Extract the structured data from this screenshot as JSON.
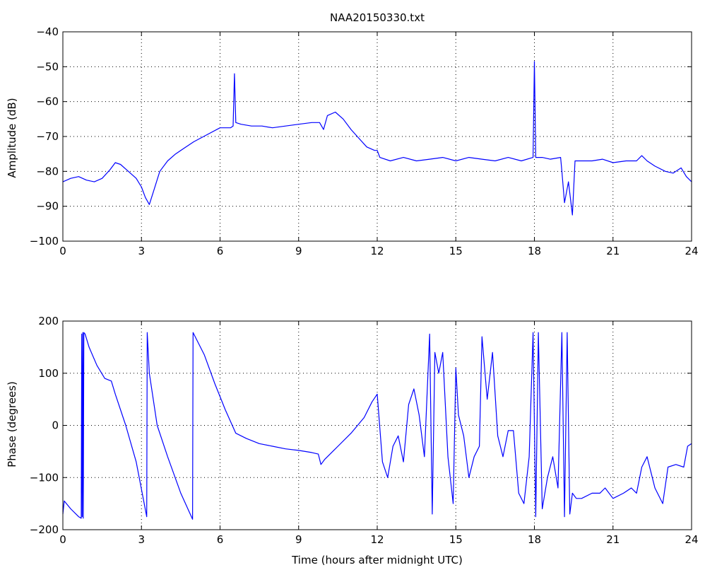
{
  "chart_data": [
    {
      "type": "line",
      "title": "NAA20150330.txt",
      "xlabel": "",
      "ylabel": "Amplitude (dB)",
      "xlim": [
        0,
        24
      ],
      "ylim": [
        -100,
        -40
      ],
      "xticks": [
        0,
        3,
        6,
        9,
        12,
        15,
        18,
        21,
        24
      ],
      "yticks": [
        -100,
        -90,
        -80,
        -70,
        -60,
        -50,
        -40
      ],
      "grid": true,
      "line_color": "#0000ff",
      "series": [
        {
          "x": [
            0,
            0.3,
            0.6,
            0.9,
            1.2,
            1.5,
            1.8,
            2.0,
            2.2,
            2.5,
            2.8,
            3.0,
            3.15,
            3.3,
            3.45,
            3.7,
            4.0,
            4.3,
            4.7,
            5.0,
            5.5,
            6.0,
            6.4,
            6.5,
            6.55,
            6.6,
            6.8,
            7.2,
            7.6,
            8.0,
            8.5,
            9.0,
            9.5,
            9.8,
            9.95,
            10.1,
            10.4,
            10.7,
            11.0,
            11.3,
            11.6,
            11.9,
            12.0,
            12.1,
            12.5,
            13.0,
            13.5,
            14.0,
            14.5,
            15.0,
            15.5,
            16.0,
            16.5,
            17.0,
            17.5,
            17.95,
            18.0,
            18.05,
            18.3,
            18.6,
            19.0,
            19.05,
            19.15,
            19.3,
            19.45,
            19.55,
            19.8,
            20.2,
            20.6,
            21.0,
            21.5,
            21.9,
            22.1,
            22.3,
            22.6,
            23.0,
            23.3,
            23.6,
            23.8,
            24.0
          ],
          "y": [
            -83,
            -82,
            -81.5,
            -82.5,
            -83,
            -82,
            -79.5,
            -77.5,
            -78,
            -80,
            -82,
            -84.5,
            -87.5,
            -89.5,
            -86,
            -80,
            -77,
            -75,
            -73,
            -71.5,
            -69.5,
            -67.5,
            -67.5,
            -67,
            -52,
            -66,
            -66.5,
            -67,
            -67,
            -67.5,
            -67,
            -66.5,
            -66,
            -66,
            -68,
            -64,
            -63,
            -65,
            -68,
            -70.5,
            -73,
            -74,
            -74,
            -76,
            -77,
            -76,
            -77,
            -76.5,
            -76,
            -77,
            -76,
            -76.5,
            -77,
            -76,
            -77,
            -76,
            -48.5,
            -76,
            -76,
            -76.5,
            -76,
            -80,
            -89,
            -83,
            -92.5,
            -77,
            -77,
            -77,
            -76.5,
            -77.5,
            -77,
            -77,
            -75.5,
            -77,
            -78.5,
            -80,
            -80.5,
            -79,
            -81.5,
            -83
          ]
        }
      ]
    },
    {
      "type": "line",
      "title": "",
      "xlabel": "Time (hours after midnight UTC)",
      "ylabel": "Phase (degrees)",
      "xlim": [
        0,
        24
      ],
      "ylim": [
        -200,
        200
      ],
      "xticks": [
        0,
        3,
        6,
        9,
        12,
        15,
        18,
        21,
        24
      ],
      "yticks": [
        -200,
        -100,
        0,
        100,
        200
      ],
      "grid": true,
      "line_color": "#0000ff",
      "series": [
        {
          "x": [
            0,
            0.05,
            0.3,
            0.6,
            0.7,
            0.72,
            0.74,
            0.76,
            0.78,
            0.8,
            0.85,
            1.0,
            1.3,
            1.6,
            1.85,
            2.0,
            2.4,
            2.8,
            3.2,
            3.22,
            3.3,
            3.6,
            4.0,
            4.5,
            4.95,
            4.97,
            5.0,
            5.4,
            5.8,
            6.0,
            6.2,
            6.6,
            7.0,
            7.5,
            8.0,
            8.5,
            9.0,
            9.5,
            9.75,
            9.85,
            10.0,
            10.5,
            11.0,
            11.5,
            11.8,
            12.0,
            12.2,
            12.4,
            12.6,
            12.8,
            13.0,
            13.2,
            13.4,
            13.6,
            13.8,
            14.0,
            14.1,
            14.2,
            14.35,
            14.5,
            14.7,
            14.9,
            15.0,
            15.1,
            15.3,
            15.5,
            15.7,
            15.9,
            16.0,
            16.2,
            16.4,
            16.6,
            16.8,
            17.0,
            17.2,
            17.4,
            17.6,
            17.8,
            17.95,
            18.05,
            18.15,
            18.3,
            18.5,
            18.7,
            18.9,
            19.05,
            19.15,
            19.25,
            19.35,
            19.45,
            19.6,
            19.8,
            20.2,
            20.5,
            20.7,
            21.0,
            21.4,
            21.7,
            21.9,
            22.1,
            22.3,
            22.6,
            22.9,
            23.1,
            23.4,
            23.7,
            23.85,
            24.0
          ],
          "y": [
            -170,
            -145,
            -160,
            -175,
            -178,
            175,
            -175,
            178,
            -178,
            178,
            175,
            150,
            115,
            90,
            85,
            60,
            0,
            -70,
            -175,
            178,
            100,
            0,
            -60,
            -130,
            -180,
            178,
            175,
            135,
            80,
            55,
            30,
            -15,
            -25,
            -35,
            -40,
            -45,
            -48,
            -52,
            -55,
            -75,
            -65,
            -40,
            -15,
            15,
            45,
            60,
            -70,
            -100,
            -40,
            -20,
            -70,
            40,
            70,
            20,
            -60,
            175,
            -170,
            140,
            100,
            140,
            -60,
            -150,
            110,
            20,
            -20,
            -100,
            -60,
            -40,
            170,
            50,
            140,
            -20,
            -60,
            -10,
            -10,
            -130,
            -150,
            -60,
            178,
            -175,
            178,
            -160,
            -100,
            -60,
            -120,
            178,
            -175,
            178,
            -170,
            -130,
            -140,
            -140,
            -130,
            -130,
            -120,
            -140,
            -130,
            -120,
            -130,
            -80,
            -60,
            -120,
            -150,
            -80,
            -75,
            -80,
            -40,
            -35
          ]
        }
      ]
    }
  ]
}
